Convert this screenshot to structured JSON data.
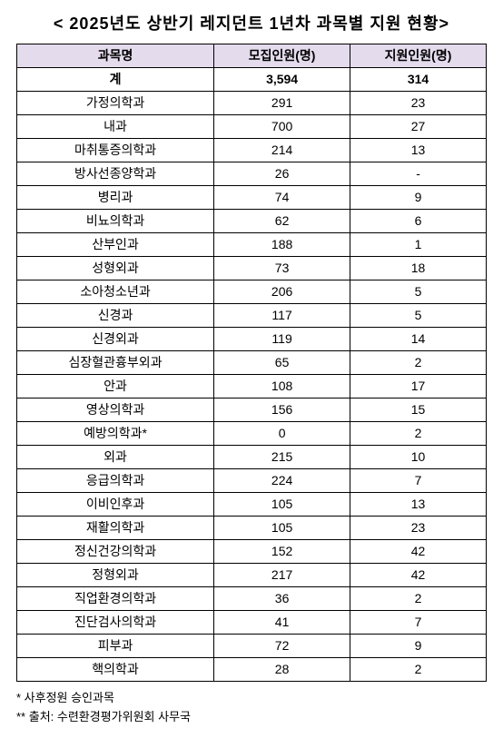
{
  "title": "< 2025년도 상반기 레지던트 1년차 과목별 지원 현황>",
  "columns": [
    "과목명",
    "모집인원(명)",
    "지원인원(명)"
  ],
  "total": {
    "label": "계",
    "recruit": "3,594",
    "apply": "314"
  },
  "rows": [
    {
      "dept": "가정의학과",
      "recruit": "291",
      "apply": "23"
    },
    {
      "dept": "내과",
      "recruit": "700",
      "apply": "27"
    },
    {
      "dept": "마취통증의학과",
      "recruit": "214",
      "apply": "13"
    },
    {
      "dept": "방사선종양학과",
      "recruit": "26",
      "apply": "-"
    },
    {
      "dept": "병리과",
      "recruit": "74",
      "apply": "9"
    },
    {
      "dept": "비뇨의학과",
      "recruit": "62",
      "apply": "6"
    },
    {
      "dept": "산부인과",
      "recruit": "188",
      "apply": "1"
    },
    {
      "dept": "성형외과",
      "recruit": "73",
      "apply": "18"
    },
    {
      "dept": "소아청소년과",
      "recruit": "206",
      "apply": "5"
    },
    {
      "dept": "신경과",
      "recruit": "117",
      "apply": "5"
    },
    {
      "dept": "신경외과",
      "recruit": "119",
      "apply": "14"
    },
    {
      "dept": "심장혈관흉부외과",
      "recruit": "65",
      "apply": "2"
    },
    {
      "dept": "안과",
      "recruit": "108",
      "apply": "17"
    },
    {
      "dept": "영상의학과",
      "recruit": "156",
      "apply": "15"
    },
    {
      "dept": "예방의학과*",
      "recruit": "0",
      "apply": "2"
    },
    {
      "dept": "외과",
      "recruit": "215",
      "apply": "10"
    },
    {
      "dept": "응급의학과",
      "recruit": "224",
      "apply": "7"
    },
    {
      "dept": "이비인후과",
      "recruit": "105",
      "apply": "13"
    },
    {
      "dept": "재활의학과",
      "recruit": "105",
      "apply": "23"
    },
    {
      "dept": "정신건강의학과",
      "recruit": "152",
      "apply": "42"
    },
    {
      "dept": "정형외과",
      "recruit": "217",
      "apply": "42"
    },
    {
      "dept": "직업환경의학과",
      "recruit": "36",
      "apply": "2"
    },
    {
      "dept": "진단검사의학과",
      "recruit": "41",
      "apply": "7"
    },
    {
      "dept": "피부과",
      "recruit": "72",
      "apply": "9"
    },
    {
      "dept": "핵의학과",
      "recruit": "28",
      "apply": "2"
    }
  ],
  "footnotes": [
    "* 사후정원 승인과목",
    "** 출처: 수련환경평가위원회 사무국"
  ],
  "style": {
    "header_bg": "#e4dbed",
    "border_color": "#000000",
    "text_color": "#000000",
    "background": "#ffffff",
    "title_fontsize": 18,
    "cell_fontsize": 14,
    "footnote_fontsize": 13
  }
}
